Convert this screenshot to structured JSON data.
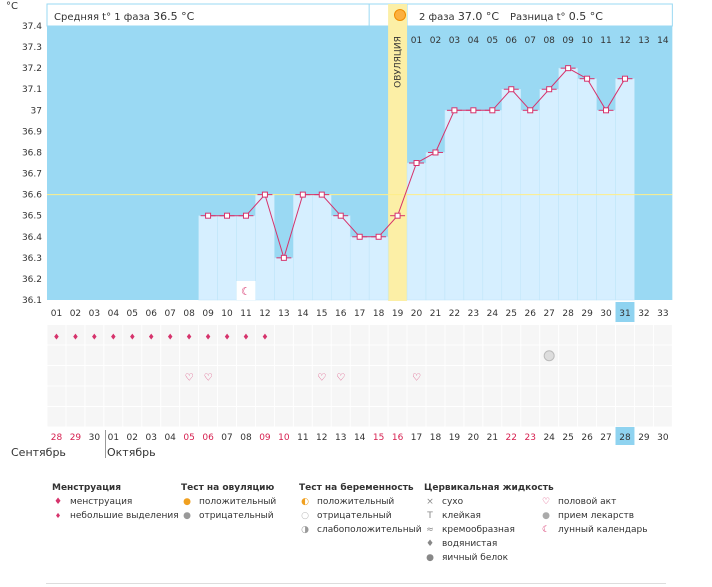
{
  "header": {
    "unit": "°C",
    "phase1_label": "Средняя t° 1 фаза",
    "phase1_value": "36.5 °C",
    "phase2_label": "2 фаза",
    "phase2_value": "37.0 °C",
    "diff_label": "Разница t°",
    "diff_value": "0.5 °C"
  },
  "ovulation_label": "ОВУЛЯЦИЯ",
  "phase2_days": [
    "01",
    "02",
    "03",
    "04",
    "05",
    "06",
    "07",
    "08",
    "09",
    "10",
    "11",
    "12",
    "13",
    "14"
  ],
  "chart_data": {
    "type": "line",
    "title": "",
    "ylim": [
      36.1,
      37.4
    ],
    "y_ticks": [
      "37.4",
      "37.3",
      "37.2",
      "37.1",
      "37",
      "36.9",
      "36.8",
      "36.7",
      "36.6",
      "36.5",
      "36.4",
      "36.3",
      "36.2",
      "36.1"
    ],
    "x_days": [
      "01",
      "02",
      "03",
      "04",
      "05",
      "06",
      "07",
      "08",
      "09",
      "10",
      "11",
      "12",
      "13",
      "14",
      "15",
      "16",
      "17",
      "18",
      "19",
      "20",
      "21",
      "22",
      "23",
      "24",
      "25",
      "26",
      "27",
      "28",
      "29",
      "30",
      "31",
      "32",
      "33"
    ],
    "series": [
      {
        "values": [
          null,
          null,
          null,
          null,
          null,
          null,
          null,
          null,
          36.5,
          36.5,
          36.5,
          36.6,
          36.3,
          36.6,
          36.6,
          36.5,
          36.4,
          36.4,
          36.5,
          36.75,
          36.8,
          37.0,
          37.0,
          37.0,
          37.1,
          37.0,
          37.1,
          37.2,
          37.15,
          37.0,
          37.15,
          null,
          null
        ]
      }
    ],
    "cover_line": 36.6,
    "ovulation_day": "19",
    "highlight_day": "31",
    "moon_day": "11"
  },
  "markers": {
    "menstruation_days": [
      1,
      2,
      3,
      4,
      5,
      6,
      7,
      8,
      9,
      10,
      11,
      12
    ],
    "intercourse_days": [
      8,
      9,
      15,
      16,
      20
    ],
    "medication_days": [
      27
    ]
  },
  "calendar": {
    "dates": [
      "28",
      "29",
      "30",
      "01",
      "02",
      "03",
      "04",
      "05",
      "06",
      "07",
      "08",
      "09",
      "10",
      "11",
      "12",
      "13",
      "14",
      "15",
      "16",
      "17",
      "18",
      "19",
      "20",
      "21",
      "22",
      "23",
      "24",
      "25",
      "26",
      "27",
      "28",
      "29",
      "30"
    ],
    "red_indices": [
      0,
      1,
      7,
      8,
      11,
      12,
      17,
      18,
      24,
      25
    ],
    "highlight_index": 30,
    "month_prev": "Сентябрь",
    "month_next": "Октябрь"
  },
  "legend": {
    "menstruation": {
      "title": "Менструация",
      "items": [
        "менструация",
        "небольшие выделения"
      ]
    },
    "ovulation_test": {
      "title": "Тест на овуляцию",
      "items": [
        "положительный",
        "отрицательный"
      ]
    },
    "pregnancy_test": {
      "title": "Тест на беременность",
      "items": [
        "положительный",
        "отрицательный",
        "слабоположительный"
      ]
    },
    "cervical": {
      "title": "Цервикальная жидкость",
      "items": [
        "сухо",
        "клейкая",
        "кремообразная",
        "водянистая",
        "яичный белок"
      ]
    },
    "other": {
      "items": [
        "половой акт",
        "прием лекарств",
        "лунный календарь"
      ]
    }
  },
  "colors": {
    "plot_bg": "#9ad9f3",
    "bar": "#d6efff",
    "line": "#d6336c",
    "ovulation": "#fcefa6",
    "cover": "#ffee88",
    "red_date": "#d61f4f",
    "highlight": "#8fd3f0"
  }
}
